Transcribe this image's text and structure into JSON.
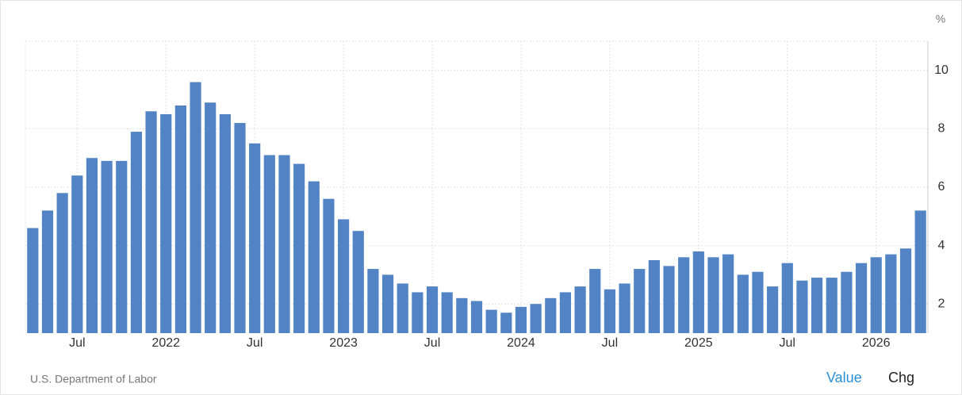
{
  "chart_data": {
    "type": "bar",
    "unit_label": "%",
    "source": "U.S. Department of Labor",
    "buttons": [
      "Value",
      "Chg"
    ],
    "color": "#5283c4",
    "categories": [
      null,
      null,
      null,
      "Jul",
      null,
      null,
      null,
      null,
      null,
      "2022",
      null,
      null,
      null,
      null,
      null,
      "Jul",
      null,
      null,
      null,
      null,
      null,
      "2023",
      null,
      null,
      null,
      null,
      null,
      "Jul",
      null,
      null,
      null,
      null,
      null,
      "2024",
      null,
      null,
      null,
      null,
      null,
      "Jul",
      null,
      null,
      null,
      null,
      null,
      "2025",
      null,
      null,
      null,
      null,
      null,
      "Jul",
      null,
      null,
      null,
      null,
      null,
      "2026",
      null,
      null,
      null
    ],
    "values": [
      4.6,
      5.2,
      5.8,
      6.4,
      7.0,
      6.9,
      6.9,
      7.9,
      8.6,
      8.5,
      8.8,
      9.6,
      8.9,
      8.5,
      8.2,
      7.5,
      7.1,
      7.1,
      6.8,
      6.2,
      5.6,
      4.9,
      4.5,
      3.2,
      3.0,
      2.7,
      2.4,
      2.6,
      2.4,
      2.2,
      2.1,
      1.8,
      1.7,
      1.9,
      2.0,
      2.2,
      2.4,
      2.6,
      3.2,
      2.5,
      2.7,
      3.2,
      3.5,
      3.3,
      3.6,
      3.8,
      3.6,
      3.7,
      3.0,
      3.1,
      2.6,
      3.4,
      2.8,
      2.9,
      2.9,
      3.1,
      3.4,
      3.6,
      3.7,
      3.9,
      5.2
    ],
    "ylim": [
      1,
      11
    ],
    "yticks": [
      2,
      4,
      6,
      8,
      10
    ],
    "grid": true
  }
}
